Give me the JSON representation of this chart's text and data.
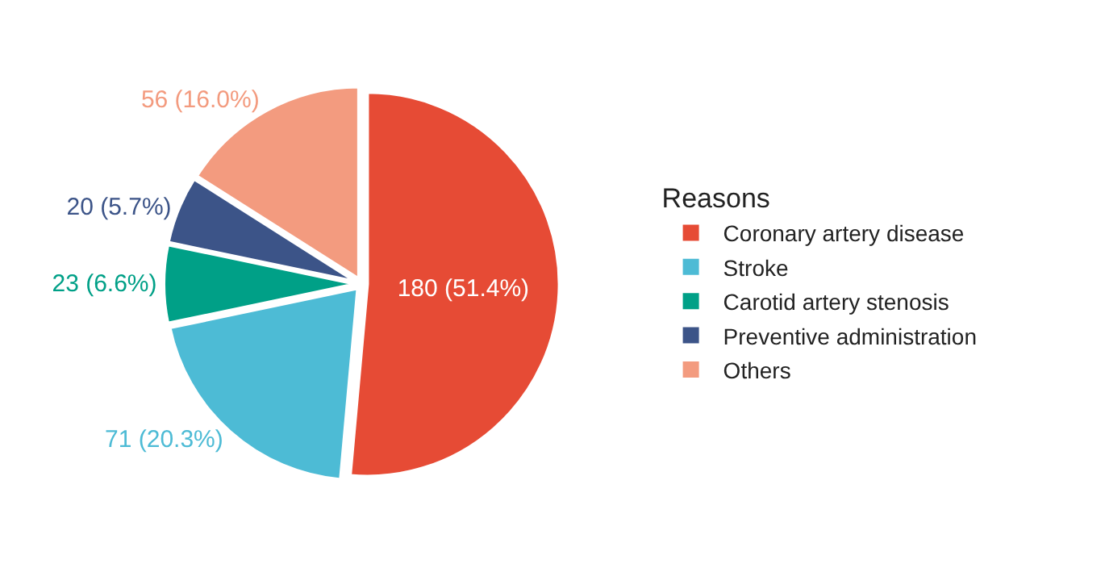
{
  "chart_data": {
    "type": "pie",
    "legend_title": "Reasons",
    "legend": "right",
    "categories": [
      "Coronary artery disease",
      "Stroke",
      "Carotid artery stenosis",
      "Preventive administration",
      "Others"
    ],
    "values": [
      180,
      71,
      23,
      20,
      56
    ],
    "colors": [
      "#e64b35",
      "#4dbbd5",
      "#00a087",
      "#3c5488",
      "#f39b7f"
    ],
    "value_labels": [
      "180 (51.4%)",
      "71 (20.3%)",
      "23 (6.6%)",
      "20 (5.7%)",
      "56 (16.0%)"
    ]
  }
}
